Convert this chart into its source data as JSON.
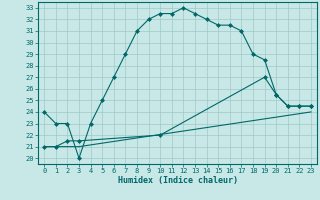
{
  "xlabel": "Humidex (Indice chaleur)",
  "ylabel": "",
  "bg_color": "#c8e8e8",
  "plot_bg_color": "#c8e8e8",
  "grid_color": "#a0c8c8",
  "line_color": "#006868",
  "border_color": "#006868",
  "xlim": [
    -0.5,
    23.5
  ],
  "ylim": [
    19.5,
    33.5
  ],
  "xticks": [
    0,
    1,
    2,
    3,
    4,
    5,
    6,
    7,
    8,
    9,
    10,
    11,
    12,
    13,
    14,
    15,
    16,
    17,
    18,
    19,
    20,
    21,
    22,
    23
  ],
  "yticks": [
    20,
    21,
    22,
    23,
    24,
    25,
    26,
    27,
    28,
    29,
    30,
    31,
    32,
    33
  ],
  "curve1_x": [
    0,
    1,
    2,
    3,
    4,
    5,
    6,
    7,
    8,
    9,
    10,
    11,
    12,
    13,
    14,
    15,
    16,
    17,
    18,
    19,
    20,
    21,
    22,
    23
  ],
  "curve1_y": [
    24,
    23,
    23,
    20,
    23,
    25,
    27,
    29,
    31,
    32,
    32.5,
    32.5,
    33,
    32.5,
    32,
    31.5,
    31.5,
    31,
    29,
    28.5,
    25.5,
    24.5,
    24.5,
    24.5
  ],
  "curve2_x": [
    0,
    1,
    2,
    3,
    10,
    19,
    20,
    21,
    22,
    23
  ],
  "curve2_y": [
    21,
    21,
    21.5,
    21.5,
    22,
    27,
    25.5,
    24.5,
    24.5,
    24.5
  ],
  "curve3_x": [
    0,
    1,
    2,
    3,
    23
  ],
  "curve3_y": [
    21,
    21,
    21,
    21,
    24
  ],
  "marker": "D",
  "markersize": 2.0,
  "linewidth": 0.8,
  "tick_fontsize": 5.0,
  "xlabel_fontsize": 6.0
}
